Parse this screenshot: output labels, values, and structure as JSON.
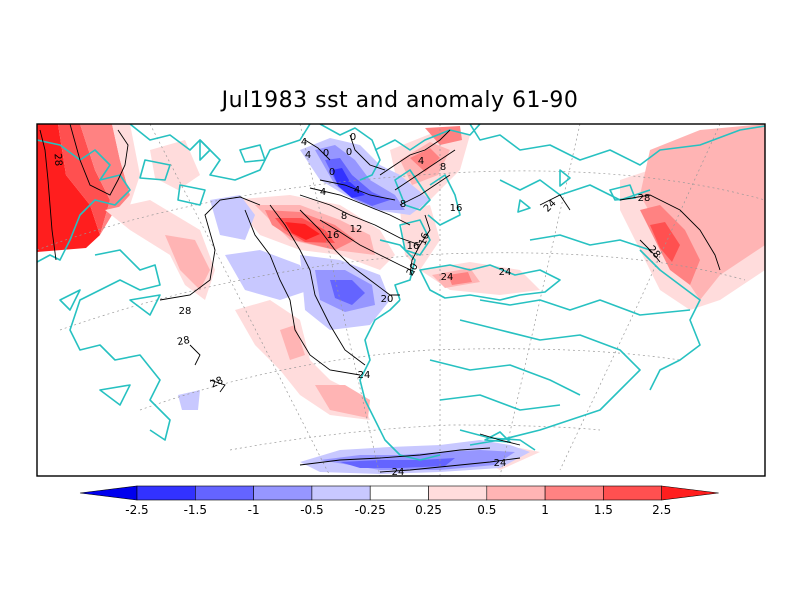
{
  "title": "Jul1983 sst and anomaly 61-90",
  "colorbar": {
    "tick_labels": [
      "-2.5",
      "-1.5",
      "-1",
      "-0.5",
      "-0.25",
      "0.25",
      "0.5",
      "1",
      "1.5",
      "2.5"
    ],
    "colors": [
      "#0000ee",
      "#3232ff",
      "#6464ff",
      "#9696ff",
      "#c8c8ff",
      "#ffffff",
      "#ffdcdc",
      "#ffb4b4",
      "#ff8282",
      "#ff5050",
      "#ff1e1e"
    ]
  },
  "contour_labels": [
    {
      "id": "c28-west",
      "text": "28"
    },
    {
      "id": "c4-a",
      "text": "4"
    },
    {
      "id": "c4-b",
      "text": "4"
    },
    {
      "id": "c0-a",
      "text": "0"
    },
    {
      "id": "c0-b",
      "text": "0"
    },
    {
      "id": "c0-c",
      "text": "0"
    },
    {
      "id": "c0-d",
      "text": "0"
    },
    {
      "id": "c4-c",
      "text": "4"
    },
    {
      "id": "c4-d",
      "text": "4"
    },
    {
      "id": "c4-e",
      "text": "4"
    },
    {
      "id": "c8-a",
      "text": "8"
    },
    {
      "id": "c8-b",
      "text": "8"
    },
    {
      "id": "c8-c",
      "text": "8"
    },
    {
      "id": "c12",
      "text": "12"
    },
    {
      "id": "c16-a",
      "text": "16"
    },
    {
      "id": "c16-b",
      "text": "16"
    },
    {
      "id": "c16-c",
      "text": "16"
    },
    {
      "id": "c16-d",
      "text": "16"
    },
    {
      "id": "c20-a",
      "text": "20"
    },
    {
      "id": "c20-b",
      "text": "20"
    },
    {
      "id": "c24-a",
      "text": "24"
    },
    {
      "id": "c24-b",
      "text": "24"
    },
    {
      "id": "c24-c",
      "text": "24"
    },
    {
      "id": "c24-d",
      "text": "24"
    },
    {
      "id": "c24-e",
      "text": "24"
    },
    {
      "id": "c24-f",
      "text": "24"
    },
    {
      "id": "c28-a",
      "text": "28"
    },
    {
      "id": "c28-b",
      "text": "28"
    },
    {
      "id": "c28-c",
      "text": "28"
    },
    {
      "id": "c28-d",
      "text": "28"
    },
    {
      "id": "c28-e",
      "text": "28"
    }
  ]
}
